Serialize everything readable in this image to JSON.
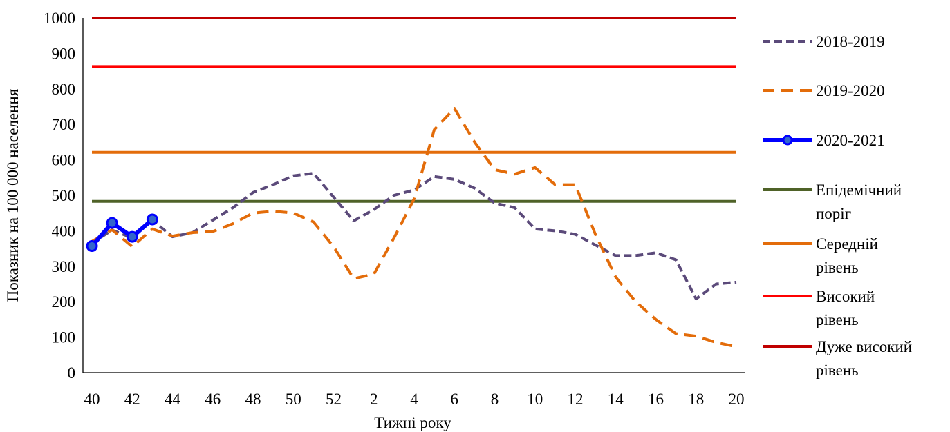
{
  "chart_data": {
    "type": "line",
    "xlabel": "Тижні року",
    "ylabel": "Показник на 100 000 населення",
    "ylim": [
      0,
      1000
    ],
    "yticks": [
      0,
      100,
      200,
      300,
      400,
      500,
      600,
      700,
      800,
      900,
      1000
    ],
    "categories": [
      "40",
      "41",
      "42",
      "43",
      "44",
      "45",
      "46",
      "47",
      "48",
      "49",
      "50",
      "51",
      "52",
      "1",
      "2",
      "3",
      "4",
      "5",
      "6",
      "7",
      "8",
      "9",
      "10",
      "11",
      "12",
      "13",
      "14",
      "15",
      "16",
      "17",
      "18",
      "19",
      "20"
    ],
    "xtick_labels": [
      "40",
      "42",
      "44",
      "46",
      "48",
      "50",
      "52",
      "2",
      "4",
      "6",
      "8",
      "10",
      "12",
      "14",
      "16",
      "18",
      "20"
    ],
    "grid": false,
    "legend_position": "right",
    "series": [
      {
        "name": "2018-2019",
        "color": "#5B4A7A",
        "style": "dash",
        "values": [
          365,
          402,
          380,
          430,
          383,
          395,
          430,
          465,
          508,
          530,
          555,
          562,
          495,
          428,
          460,
          500,
          515,
          553,
          545,
          520,
          478,
          465,
          405,
          400,
          390,
          360,
          330,
          330,
          338,
          318,
          208,
          250,
          255
        ]
      },
      {
        "name": "2019-2020",
        "color": "#E36C0A",
        "style": "longdash",
        "values": [
          370,
          403,
          355,
          405,
          385,
          395,
          398,
          420,
          450,
          455,
          450,
          425,
          355,
          265,
          278,
          380,
          490,
          685,
          745,
          650,
          572,
          560,
          578,
          530,
          530,
          390,
          270,
          200,
          150,
          110,
          103,
          85,
          73
        ]
      },
      {
        "name": "2020-2021",
        "color": "#0000FF",
        "style": "solid-marker",
        "values": [
          357,
          422,
          383,
          432,
          null,
          null,
          null,
          null,
          null,
          null,
          null,
          null,
          null,
          null,
          null,
          null,
          null,
          null,
          null,
          null,
          null,
          null,
          null,
          null,
          null,
          null,
          null,
          null,
          null,
          null,
          null,
          null,
          null
        ]
      },
      {
        "name": "Епідемічний поріг",
        "color": "#4F6228",
        "style": "solid",
        "constant": 483
      },
      {
        "name": "Середній рівень",
        "color": "#E36C0A",
        "style": "solid",
        "constant": 621
      },
      {
        "name": "Високий рівень",
        "color": "#FF0000",
        "style": "solid",
        "constant": 863
      },
      {
        "name": "Дуже високий рівень",
        "color": "#C00000",
        "style": "solid",
        "constant": 1000
      }
    ],
    "legend": [
      {
        "lines": [
          "2018-2019"
        ]
      },
      {
        "lines": [
          "2019-2020"
        ]
      },
      {
        "lines": [
          "2020-2021"
        ]
      },
      {
        "lines": [
          " Епідемічний",
          "поріг"
        ]
      },
      {
        "lines": [
          "Середній",
          "рівень"
        ]
      },
      {
        "lines": [
          "Високий",
          "рівень"
        ]
      },
      {
        "lines": [
          "Дуже високий",
          "рівень"
        ]
      }
    ]
  }
}
